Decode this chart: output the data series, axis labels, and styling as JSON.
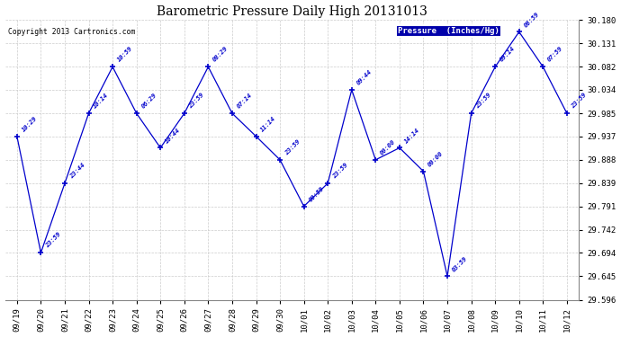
{
  "title": "Barometric Pressure Daily High 20131013",
  "copyright": "Copyright 2013 Cartronics.com",
  "legend_label": "Pressure  (Inches/Hg)",
  "background_color": "#ffffff",
  "plot_bg_color": "#ffffff",
  "line_color": "#0000cc",
  "x_labels": [
    "09/19",
    "09/20",
    "09/21",
    "09/22",
    "09/23",
    "09/24",
    "09/25",
    "09/26",
    "09/27",
    "09/28",
    "09/29",
    "09/30",
    "10/01",
    "10/02",
    "10/03",
    "10/04",
    "10/05",
    "10/06",
    "10/07",
    "10/08",
    "10/09",
    "10/10",
    "10/11",
    "10/12"
  ],
  "y_values": [
    29.937,
    29.694,
    29.839,
    29.985,
    30.082,
    29.985,
    29.913,
    29.985,
    30.082,
    29.985,
    29.937,
    29.888,
    29.791,
    29.839,
    30.034,
    29.888,
    29.913,
    29.864,
    29.645,
    29.985,
    30.082,
    30.155,
    30.082,
    29.985
  ],
  "time_labels": [
    "10:29",
    "23:59",
    "23:44",
    "10:14",
    "10:59",
    "06:29",
    "10:44",
    "23:59",
    "08:29",
    "07:14",
    "11:14",
    "23:59",
    "00:59",
    "23:59",
    "09:44",
    "00:00",
    "14:14",
    "00:00",
    "03:59",
    "23:59",
    "09:14",
    "08:59",
    "07:59",
    "23:59"
  ],
  "ylim_min": 29.596,
  "ylim_max": 30.18,
  "yticks": [
    29.596,
    29.645,
    29.694,
    29.742,
    29.791,
    29.839,
    29.888,
    29.937,
    29.985,
    30.034,
    30.082,
    30.131,
    30.18
  ]
}
